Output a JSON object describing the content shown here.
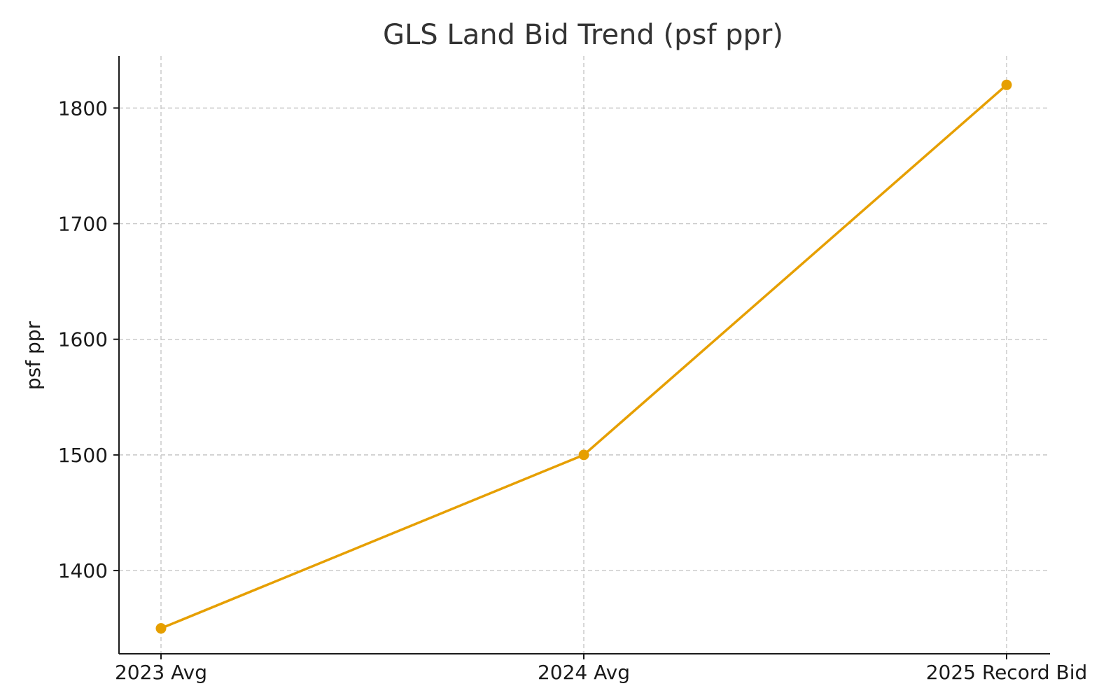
{
  "chart_data": {
    "type": "line",
    "title": "GLS Land Bid Trend (psf ppr)",
    "xlabel": "",
    "ylabel": "psf ppr",
    "categories": [
      "2023 Avg",
      "2024 Avg",
      "2025 Record Bid"
    ],
    "series": [
      {
        "values": [
          1350,
          1500,
          1820
        ]
      }
    ],
    "yticks": [
      1400,
      1500,
      1600,
      1700,
      1800
    ],
    "ylim": [
      1328,
      1845
    ],
    "grid": true,
    "legend": "none",
    "colors": {
      "line": "#e69f00",
      "grid": "#c8c8c8",
      "axis": "#1a1a1a"
    }
  }
}
